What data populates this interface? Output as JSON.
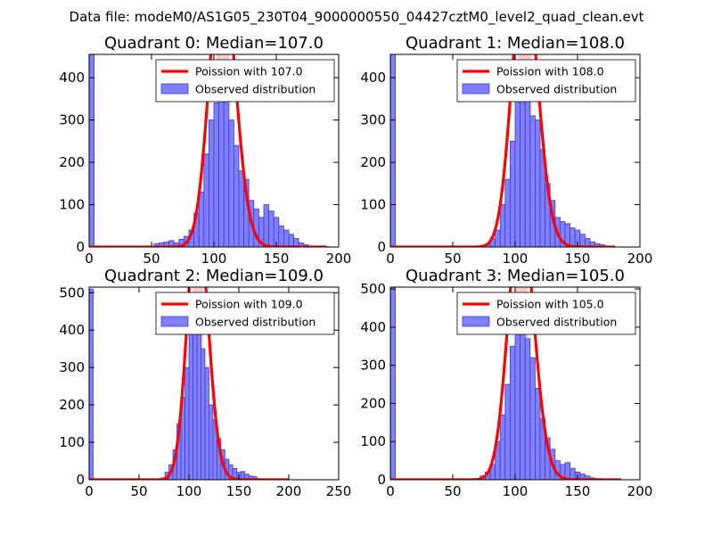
{
  "figure": {
    "suptitle": "Data file: modeM0/AS1G05_230T04_9000000550_04427cztM0_level2_quad_clean.evt"
  },
  "colors": {
    "bar_fill": "#8080ff",
    "bar_edge": "#3b3bd6",
    "poisson_line": "#ff0000",
    "median_band": "#f4a0a0"
  },
  "chart_data": [
    {
      "type": "bar",
      "title": "Quadrant 0: Median=107.0",
      "median": 107.0,
      "xlim": [
        0,
        200
      ],
      "ylim": [
        0,
        455
      ],
      "xticks": [
        0,
        50,
        100,
        150,
        200
      ],
      "yticks": [
        0,
        100,
        200,
        300,
        400
      ],
      "legend": [
        "Poission with 107.0",
        "Observed distribution"
      ],
      "legend_position": "top-right",
      "bin_width": 4,
      "bins": [
        [
          0,
          455
        ],
        [
          52,
          8
        ],
        [
          56,
          10
        ],
        [
          60,
          12
        ],
        [
          64,
          15
        ],
        [
          68,
          10
        ],
        [
          72,
          18
        ],
        [
          76,
          25
        ],
        [
          80,
          40
        ],
        [
          84,
          80
        ],
        [
          88,
          130
        ],
        [
          92,
          220
        ],
        [
          96,
          300
        ],
        [
          100,
          340
        ],
        [
          104,
          380
        ],
        [
          108,
          360
        ],
        [
          112,
          300
        ],
        [
          116,
          240
        ],
        [
          120,
          180
        ],
        [
          124,
          160
        ],
        [
          128,
          110
        ],
        [
          132,
          90
        ],
        [
          136,
          70
        ],
        [
          140,
          100
        ],
        [
          144,
          85
        ],
        [
          148,
          70
        ],
        [
          152,
          50
        ],
        [
          156,
          40
        ],
        [
          160,
          30
        ],
        [
          164,
          20
        ],
        [
          168,
          10
        ],
        [
          172,
          5
        ],
        [
          176,
          2
        ],
        [
          180,
          1
        ],
        [
          184,
          1
        ],
        [
          188,
          1
        ]
      ],
      "poisson_scale": 17400,
      "poisson_range": [
        0,
        190
      ]
    },
    {
      "type": "bar",
      "title": "Quadrant 1: Median=108.0",
      "median": 108.0,
      "xlim": [
        0,
        200
      ],
      "ylim": [
        0,
        455
      ],
      "xticks": [
        0,
        50,
        100,
        150,
        200
      ],
      "yticks": [
        0,
        100,
        200,
        300,
        400
      ],
      "legend": [
        "Poission with 108.0",
        "Observed distribution"
      ],
      "legend_position": "top-right",
      "bin_width": 4,
      "bins": [
        [
          0,
          455
        ],
        [
          72,
          3
        ],
        [
          76,
          5
        ],
        [
          80,
          20
        ],
        [
          84,
          40
        ],
        [
          88,
          100
        ],
        [
          92,
          160
        ],
        [
          96,
          250
        ],
        [
          100,
          360
        ],
        [
          104,
          410
        ],
        [
          108,
          400
        ],
        [
          112,
          310
        ],
        [
          116,
          300
        ],
        [
          120,
          230
        ],
        [
          124,
          150
        ],
        [
          128,
          110
        ],
        [
          132,
          70
        ],
        [
          136,
          60
        ],
        [
          140,
          55
        ],
        [
          144,
          45
        ],
        [
          148,
          40
        ],
        [
          152,
          30
        ],
        [
          156,
          20
        ],
        [
          160,
          12
        ],
        [
          164,
          8
        ],
        [
          168,
          5
        ],
        [
          172,
          2
        ],
        [
          176,
          1
        ]
      ],
      "poisson_scale": 17000,
      "poisson_range": [
        0,
        180
      ]
    },
    {
      "type": "bar",
      "title": "Quadrant 2: Median=109.0",
      "median": 109.0,
      "xlim": [
        0,
        250
      ],
      "ylim": [
        0,
        515
      ],
      "xticks": [
        0,
        50,
        100,
        150,
        200,
        250
      ],
      "yticks": [
        0,
        100,
        200,
        300,
        400,
        500
      ],
      "legend": [
        "Poission with 109.0",
        "Observed distribution"
      ],
      "legend_position": "top-right",
      "bin_width": 4,
      "bins": [
        [
          0,
          510
        ],
        [
          72,
          5
        ],
        [
          76,
          20
        ],
        [
          80,
          40
        ],
        [
          84,
          80
        ],
        [
          88,
          150
        ],
        [
          92,
          220
        ],
        [
          96,
          300
        ],
        [
          100,
          390
        ],
        [
          104,
          480
        ],
        [
          108,
          460
        ],
        [
          112,
          350
        ],
        [
          116,
          300
        ],
        [
          120,
          200
        ],
        [
          124,
          160
        ],
        [
          128,
          110
        ],
        [
          132,
          80
        ],
        [
          136,
          55
        ],
        [
          140,
          40
        ],
        [
          144,
          30
        ],
        [
          148,
          20
        ],
        [
          152,
          22
        ],
        [
          156,
          15
        ],
        [
          160,
          10
        ],
        [
          164,
          8
        ],
        [
          168,
          3
        ],
        [
          172,
          2
        ]
      ],
      "poisson_scale": 18500,
      "poisson_range": [
        0,
        200
      ]
    },
    {
      "type": "bar",
      "title": "Quadrant 3: Median=105.0",
      "median": 105.0,
      "xlim": [
        0,
        200
      ],
      "ylim": [
        0,
        505
      ],
      "xticks": [
        0,
        50,
        100,
        150,
        200
      ],
      "yticks": [
        0,
        100,
        200,
        300,
        400,
        500
      ],
      "legend": [
        "Poission with 105.0",
        "Observed distribution"
      ],
      "legend_position": "top-right",
      "bin_width": 4,
      "bins": [
        [
          0,
          505
        ],
        [
          68,
          2
        ],
        [
          72,
          10
        ],
        [
          76,
          20
        ],
        [
          80,
          40
        ],
        [
          84,
          100
        ],
        [
          88,
          170
        ],
        [
          92,
          250
        ],
        [
          96,
          350
        ],
        [
          100,
          410
        ],
        [
          104,
          440
        ],
        [
          108,
          370
        ],
        [
          112,
          320
        ],
        [
          116,
          240
        ],
        [
          120,
          160
        ],
        [
          124,
          110
        ],
        [
          128,
          80
        ],
        [
          132,
          50
        ],
        [
          136,
          40
        ],
        [
          140,
          45
        ],
        [
          144,
          30
        ],
        [
          148,
          20
        ],
        [
          152,
          15
        ],
        [
          156,
          10
        ],
        [
          160,
          5
        ],
        [
          164,
          3
        ],
        [
          168,
          2
        ],
        [
          172,
          1
        ]
      ],
      "poisson_scale": 18000,
      "poisson_range": [
        0,
        185
      ]
    }
  ]
}
